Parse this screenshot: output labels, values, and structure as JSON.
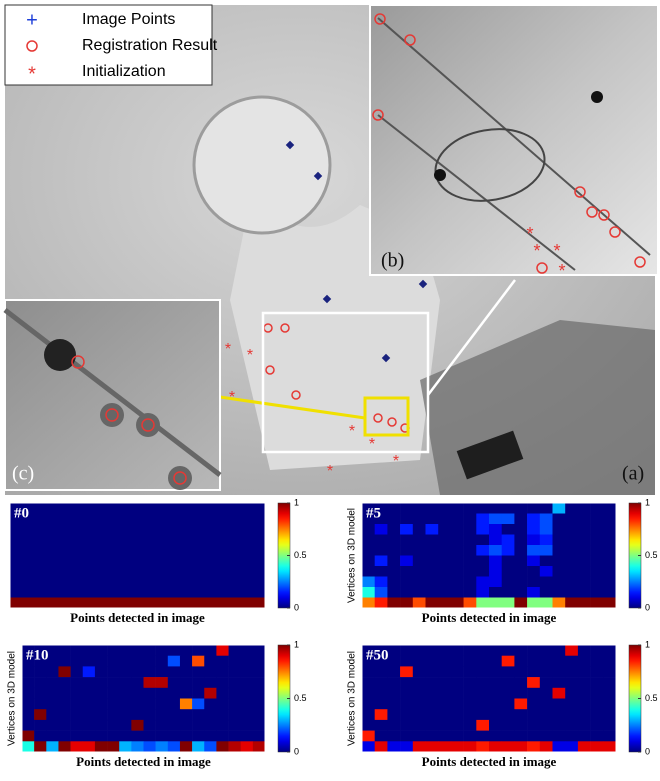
{
  "figure": {
    "legend": [
      "Image Points",
      "Registration Result",
      "Initialization"
    ],
    "panel_labels": [
      "(a)",
      "(b)",
      "(c)"
    ]
  },
  "chart_data": [
    {
      "type": "heatmap",
      "title": "#0",
      "xlabel": "Points detected in image",
      "colormap": "jet",
      "values": [
        [
          0,
          0,
          0,
          0,
          0,
          0,
          0,
          0,
          0,
          0,
          0,
          0,
          0,
          0,
          0,
          0,
          0,
          0,
          0,
          0
        ],
        [
          0,
          0,
          0,
          0,
          0,
          0,
          0,
          0,
          0,
          0,
          0,
          0,
          0,
          0,
          0,
          0,
          0,
          0,
          0,
          0
        ],
        [
          0,
          0,
          0,
          0,
          0,
          0,
          0,
          0,
          0,
          0,
          0,
          0,
          0,
          0,
          0,
          0,
          0,
          0,
          0,
          0
        ],
        [
          0,
          0,
          0,
          0,
          0,
          0,
          0,
          0,
          0,
          0,
          0,
          0,
          0,
          0,
          0,
          0,
          0,
          0,
          0,
          0
        ],
        [
          0,
          0,
          0,
          0,
          0,
          0,
          0,
          0,
          0,
          0,
          0,
          0,
          0,
          0,
          0,
          0,
          0,
          0,
          0,
          0
        ],
        [
          0,
          0,
          0,
          0,
          0,
          0,
          0,
          0,
          0,
          0,
          0,
          0,
          0,
          0,
          0,
          0,
          0,
          0,
          0,
          0
        ],
        [
          0,
          0,
          0,
          0,
          0,
          0,
          0,
          0,
          0,
          0,
          0,
          0,
          0,
          0,
          0,
          0,
          0,
          0,
          0,
          0
        ],
        [
          0,
          0,
          0,
          0,
          0,
          0,
          0,
          0,
          0,
          0,
          0,
          0,
          0,
          0,
          0,
          0,
          0,
          0,
          0,
          0
        ],
        [
          0,
          0,
          0,
          0,
          0,
          0,
          0,
          0,
          0,
          0,
          0,
          0,
          0,
          0,
          0,
          0,
          0,
          0,
          0,
          0
        ],
        [
          1,
          1,
          1,
          1,
          1,
          1,
          1,
          1,
          1,
          1,
          1,
          1,
          1,
          1,
          1,
          1,
          1,
          1,
          1,
          1
        ]
      ],
      "clim": [
        0,
        1
      ],
      "cticks": [
        0,
        0.5,
        1
      ]
    },
    {
      "type": "heatmap",
      "title": "#5",
      "xlabel": "Points detected in image",
      "ylabel": "Vertices on 3D model",
      "colormap": "jet",
      "values": [
        [
          0,
          0,
          0,
          0,
          0,
          0,
          0,
          0,
          0,
          0,
          0,
          0,
          0,
          0,
          0,
          0.3,
          0,
          0,
          0,
          0
        ],
        [
          0,
          0,
          0,
          0,
          0,
          0,
          0,
          0,
          0,
          0.15,
          0.2,
          0.2,
          0,
          0.15,
          0.2,
          0,
          0,
          0,
          0,
          0
        ],
        [
          0,
          0.1,
          0,
          0.15,
          0,
          0.15,
          0,
          0,
          0,
          0.15,
          0.1,
          0,
          0,
          0.15,
          0.2,
          0,
          0,
          0,
          0,
          0
        ],
        [
          0,
          0,
          0,
          0,
          0,
          0,
          0,
          0,
          0,
          0,
          0.1,
          0.15,
          0,
          0.1,
          0.15,
          0,
          0,
          0,
          0,
          0
        ],
        [
          0,
          0,
          0,
          0,
          0,
          0,
          0,
          0,
          0,
          0.15,
          0.2,
          0.15,
          0,
          0.2,
          0.2,
          0,
          0,
          0,
          0,
          0
        ],
        [
          0,
          0.15,
          0,
          0.1,
          0,
          0,
          0,
          0,
          0,
          0,
          0.1,
          0,
          0,
          0.1,
          0,
          0,
          0,
          0,
          0,
          0
        ],
        [
          0,
          0,
          0,
          0,
          0,
          0,
          0,
          0,
          0,
          0,
          0.1,
          0,
          0,
          0,
          0.1,
          0,
          0,
          0,
          0,
          0
        ],
        [
          0.25,
          0.15,
          0,
          0,
          0,
          0,
          0,
          0,
          0,
          0.1,
          0.1,
          0,
          0,
          0,
          0,
          0,
          0,
          0,
          0,
          0
        ],
        [
          0.4,
          0.2,
          0,
          0,
          0,
          0,
          0,
          0,
          0,
          0.1,
          0,
          0,
          0,
          0.1,
          0,
          0,
          0,
          0,
          0,
          0
        ],
        [
          0.75,
          0.85,
          1,
          1,
          0.8,
          1,
          1,
          1,
          0.8,
          0.5,
          0.5,
          0.5,
          1,
          0.5,
          0.5,
          0.75,
          1,
          1,
          1,
          1
        ]
      ],
      "clim": [
        0,
        1
      ],
      "cticks": [
        0,
        0.5,
        1
      ]
    },
    {
      "type": "heatmap",
      "title": "#10",
      "xlabel": "Points detected in image",
      "ylabel": "Vertices on 3D model",
      "colormap": "jet",
      "values": [
        [
          0,
          0,
          0,
          0,
          0,
          0,
          0,
          0,
          0,
          0,
          0,
          0,
          0,
          0,
          0,
          0,
          0.9,
          0,
          0,
          0
        ],
        [
          0,
          0,
          0,
          0,
          0,
          0,
          0,
          0,
          0,
          0,
          0,
          0,
          0.2,
          0,
          0.8,
          0,
          0,
          0,
          0,
          0
        ],
        [
          0,
          0,
          0,
          1,
          0,
          0.15,
          0,
          0,
          0,
          0,
          0,
          0,
          0,
          0,
          0,
          0,
          0,
          0,
          0,
          0
        ],
        [
          0,
          0,
          0,
          0,
          0,
          0,
          0,
          0,
          0,
          0,
          0.95,
          0.95,
          0,
          0,
          0,
          0,
          0,
          0,
          0,
          0
        ],
        [
          0,
          0,
          0,
          0,
          0,
          0,
          0,
          0,
          0,
          0,
          0,
          0,
          0,
          0,
          0,
          0.95,
          0,
          0,
          0,
          0
        ],
        [
          0,
          0,
          0,
          0,
          0,
          0,
          0,
          0,
          0,
          0,
          0,
          0,
          0,
          0.75,
          0.2,
          0,
          0,
          0,
          0,
          0
        ],
        [
          0,
          1,
          0,
          0,
          0,
          0,
          0,
          0,
          0,
          0,
          0,
          0,
          0,
          0,
          0,
          0,
          0,
          0,
          0,
          0
        ],
        [
          0,
          0,
          0,
          0,
          0,
          0,
          0,
          0,
          0,
          1,
          0,
          0,
          0,
          0,
          0,
          0,
          0,
          0,
          0,
          0
        ],
        [
          1,
          0,
          0,
          0,
          0,
          0,
          0,
          0,
          0,
          0,
          0,
          0,
          0,
          0,
          0,
          0,
          0,
          0,
          0,
          0
        ],
        [
          0.4,
          1,
          0.3,
          1,
          0.9,
          0.9,
          1,
          1,
          0.3,
          0.25,
          0.2,
          0.25,
          0.2,
          1,
          0.3,
          0.2,
          1,
          0.95,
          0.9,
          0.95
        ]
      ],
      "clim": [
        0,
        1
      ],
      "cticks": [
        0,
        0.5,
        1
      ]
    },
    {
      "type": "heatmap",
      "title": "#50",
      "xlabel": "Points detected in image",
      "ylabel": "Vertices on 3D model",
      "colormap": "jet",
      "values": [
        [
          0,
          0,
          0,
          0,
          0,
          0,
          0,
          0,
          0,
          0,
          0,
          0,
          0,
          0,
          0,
          0,
          0.9,
          0,
          0,
          0
        ],
        [
          0,
          0,
          0,
          0,
          0,
          0,
          0,
          0,
          0,
          0,
          0,
          0.85,
          0,
          0,
          0,
          0,
          0,
          0,
          0,
          0
        ],
        [
          0,
          0,
          0,
          0.85,
          0,
          0,
          0,
          0,
          0,
          0,
          0,
          0,
          0,
          0,
          0,
          0,
          0,
          0,
          0,
          0
        ],
        [
          0,
          0,
          0,
          0,
          0,
          0,
          0,
          0,
          0,
          0,
          0,
          0,
          0,
          0.85,
          0,
          0,
          0,
          0,
          0,
          0
        ],
        [
          0,
          0,
          0,
          0,
          0,
          0,
          0,
          0,
          0,
          0,
          0,
          0,
          0,
          0,
          0,
          0.9,
          0,
          0,
          0,
          0
        ],
        [
          0,
          0,
          0,
          0,
          0,
          0,
          0,
          0,
          0,
          0,
          0,
          0,
          0.85,
          0,
          0,
          0,
          0,
          0,
          0,
          0
        ],
        [
          0,
          0.85,
          0,
          0,
          0,
          0,
          0,
          0,
          0,
          0,
          0,
          0,
          0,
          0,
          0,
          0,
          0,
          0,
          0,
          0
        ],
        [
          0,
          0,
          0,
          0,
          0,
          0,
          0,
          0,
          0,
          0.85,
          0,
          0,
          0,
          0,
          0,
          0,
          0,
          0,
          0,
          0
        ],
        [
          0.85,
          0,
          0,
          0,
          0,
          0,
          0,
          0,
          0,
          0,
          0,
          0,
          0,
          0,
          0,
          0,
          0,
          0,
          0,
          0
        ],
        [
          0.1,
          0.9,
          0.1,
          0.1,
          0.9,
          0.9,
          0.9,
          0.9,
          0.9,
          0.85,
          0.9,
          0.9,
          0.9,
          0.85,
          0.9,
          0.1,
          0.1,
          0.9,
          0.9,
          0.9
        ]
      ],
      "clim": [
        0,
        1
      ],
      "cticks": [
        0,
        0.5,
        1
      ]
    }
  ]
}
